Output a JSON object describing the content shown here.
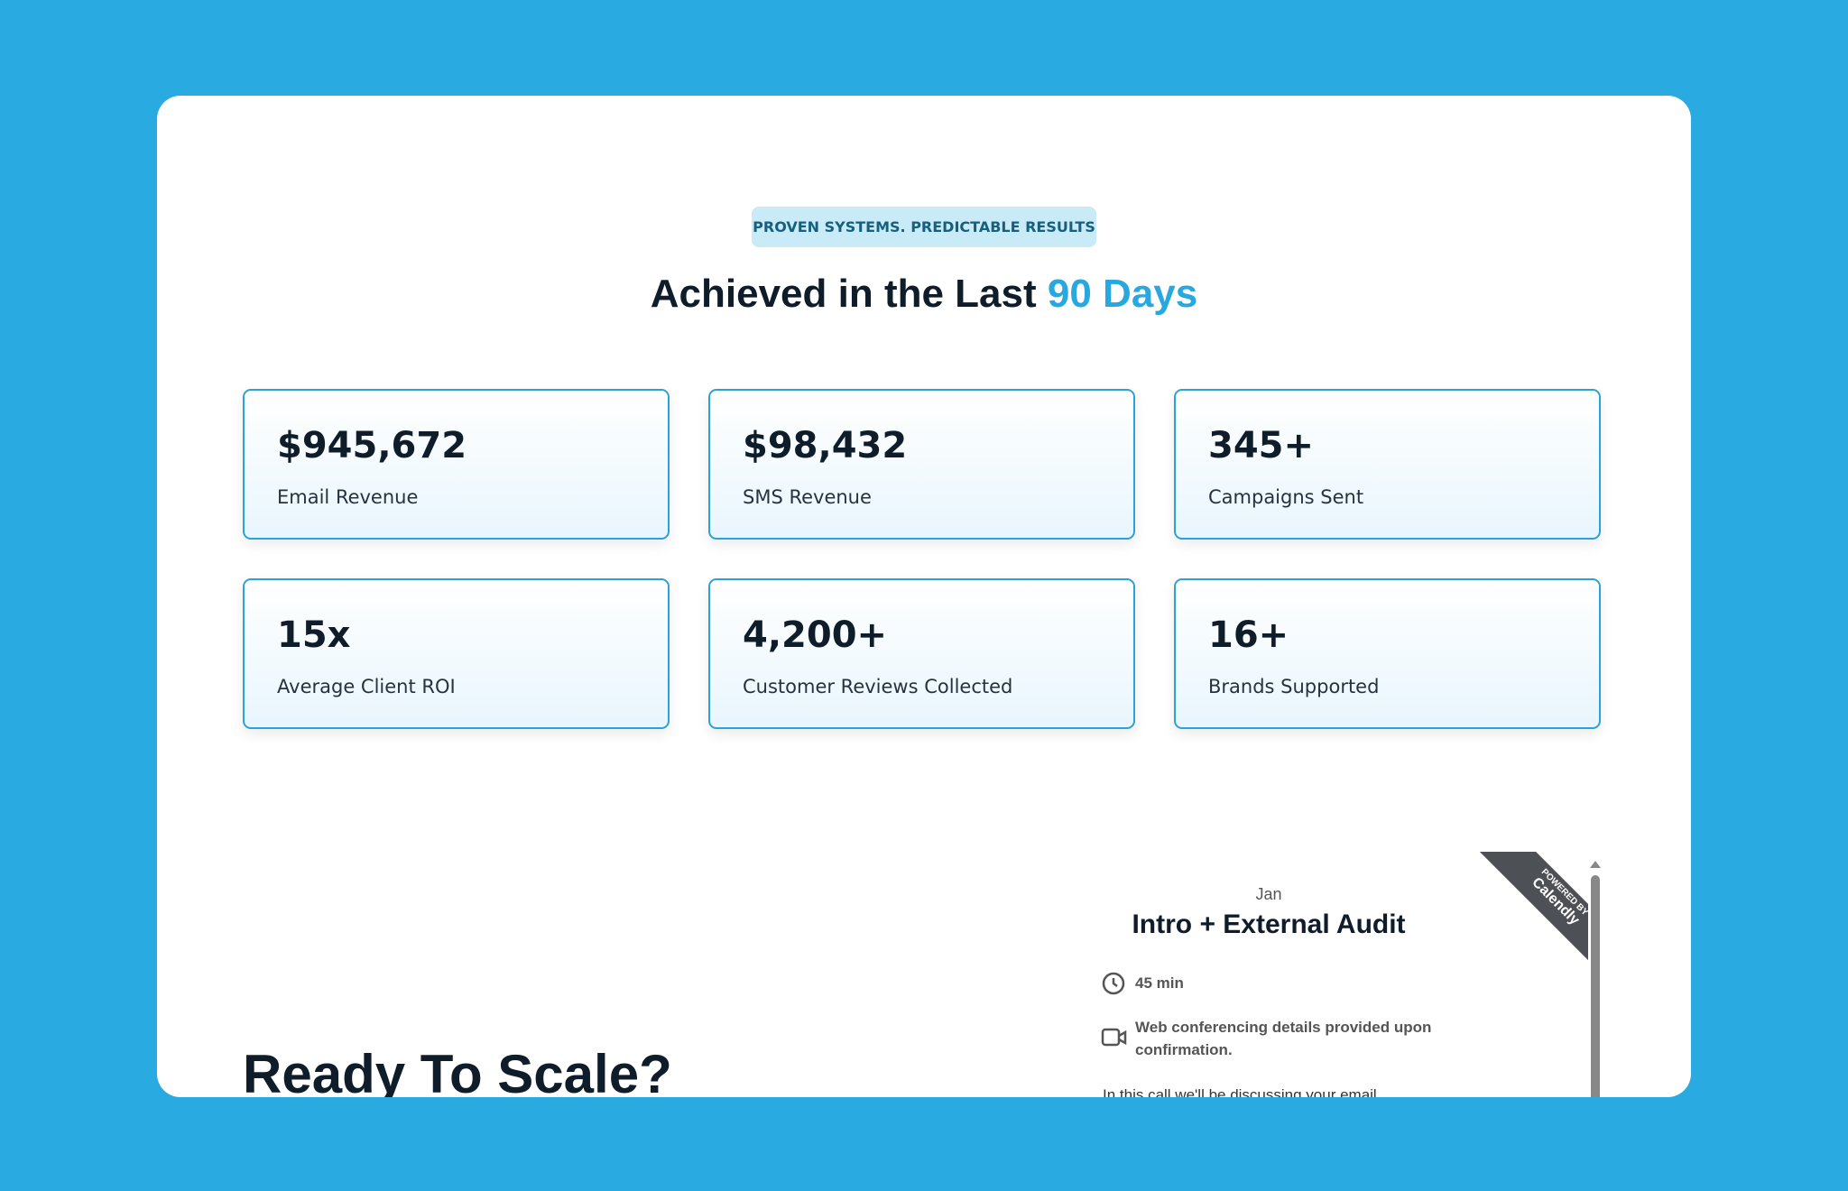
{
  "badge": "PROVEN SYSTEMS. PREDICTABLE RESULTS",
  "heading": {
    "main": "Achieved in the Last",
    "highlight": "90 Days"
  },
  "stats": [
    {
      "value": "$945,672",
      "label": "Email Revenue"
    },
    {
      "value": "$98,432",
      "label": "SMS Revenue"
    },
    {
      "value": "345+",
      "label": "Campaigns Sent"
    },
    {
      "value": "15x",
      "label": "Average Client ROI"
    },
    {
      "value": "4,200+",
      "label": "Customer Reviews Collected"
    },
    {
      "value": "16+",
      "label": "Brands Supported"
    }
  ],
  "cta": {
    "title": "Ready To Scale?"
  },
  "widget": {
    "host": "Jan",
    "title": "Intro + External Audit",
    "duration": "45 min",
    "conferencing": "Web conferencing details provided upon confirmation.",
    "description": "In this call we'll be discussing your email",
    "ribbon": {
      "top": "POWERED BY",
      "brand": "Calendly"
    }
  }
}
